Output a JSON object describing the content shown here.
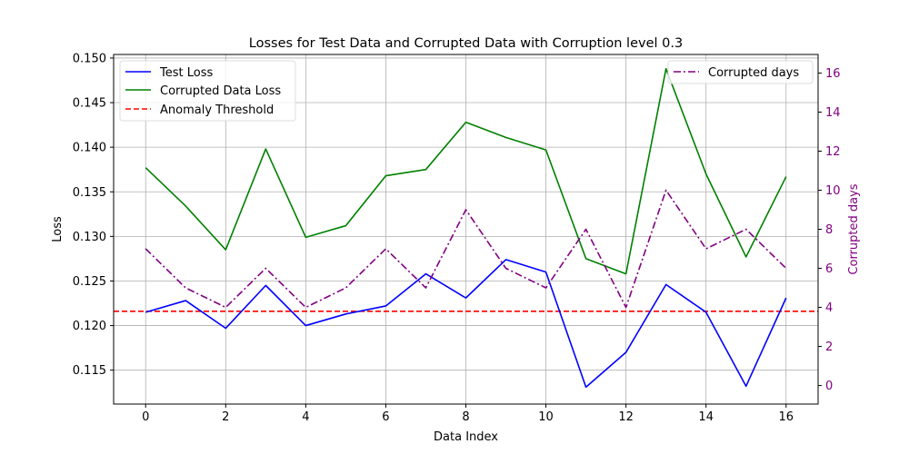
{
  "chart_data": {
    "type": "line",
    "title": "Losses for Test Data and Corrupted Data with Corruption level 0.3",
    "xlabel": "Data Index",
    "ylabel": "Loss",
    "y2label": "Corrupted days",
    "x": [
      0,
      1,
      2,
      3,
      4,
      5,
      6,
      7,
      8,
      9,
      10,
      11,
      12,
      13,
      14,
      15,
      16
    ],
    "xlim": [
      -0.8,
      16.8
    ],
    "ylim": [
      0.1112,
      0.1504
    ],
    "y2lim": [
      -0.95,
      16.95
    ],
    "xticks": [
      0,
      2,
      4,
      6,
      8,
      10,
      12,
      14,
      16
    ],
    "yticks": [
      0.115,
      0.12,
      0.125,
      0.13,
      0.135,
      0.14,
      0.145,
      0.15
    ],
    "yticklabels": [
      "0.115",
      "0.120",
      "0.125",
      "0.130",
      "0.135",
      "0.140",
      "0.145",
      "0.150"
    ],
    "y2ticks": [
      0,
      2,
      4,
      6,
      8,
      10,
      12,
      14,
      16
    ],
    "grid": true,
    "series": [
      {
        "name": "Test Loss",
        "axis": "left",
        "color": "#0000ff",
        "style": "solid",
        "values": [
          0.1215,
          0.1228,
          0.1197,
          0.1245,
          0.12,
          0.1213,
          0.1222,
          0.1258,
          0.1231,
          0.1274,
          0.126,
          0.1131,
          0.117,
          0.1246,
          0.1215,
          0.1132,
          0.1231
        ]
      },
      {
        "name": "Corrupted Data Loss",
        "axis": "left",
        "color": "#008000",
        "style": "solid",
        "values": [
          0.1377,
          0.1334,
          0.1285,
          0.1398,
          0.1299,
          0.1312,
          0.1368,
          0.1375,
          0.1428,
          0.1411,
          0.1397,
          0.1275,
          0.1258,
          0.1488,
          0.137,
          0.1277,
          0.1367
        ]
      },
      {
        "name": "Corrupted days",
        "axis": "right",
        "color": "#800080",
        "style": "dashdot",
        "values": [
          7,
          5,
          4,
          6,
          4,
          5,
          7,
          5,
          9,
          6,
          5,
          8,
          4,
          10,
          7,
          8,
          6
        ]
      }
    ],
    "hlines": [
      {
        "name": "Anomaly Threshold",
        "axis": "left",
        "y": 0.1216,
        "color": "#ff0000",
        "style": "dashed"
      }
    ],
    "legends": [
      {
        "placement": "top-left",
        "entries": [
          "Test Loss",
          "Corrupted Data Loss",
          "Anomaly Threshold"
        ]
      },
      {
        "placement": "top-right",
        "entries": [
          "Corrupted days"
        ]
      }
    ]
  }
}
